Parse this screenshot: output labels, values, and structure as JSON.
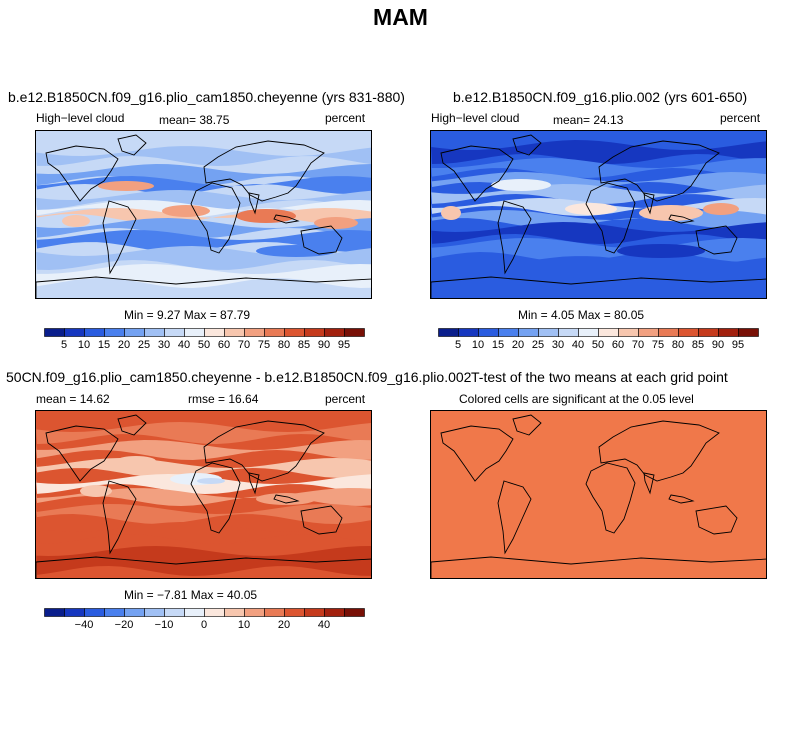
{
  "figure_title": "MAM",
  "panels": [
    {
      "title": "b.e12.B1850CN.f09_g16.plio_cam1850.cheyenne (yrs 831-880)",
      "left_label": "High−level cloud",
      "center_label": "mean=  38.75",
      "right_label": "percent",
      "stats": "Min =    9.27  Max =   87.79",
      "scale": "abs",
      "mean": 38.75,
      "min": 9.27,
      "max": 87.79
    },
    {
      "title": "b.e12.B1850CN.f09_g16.plio.002 (yrs 601-650)",
      "left_label": "High−level cloud",
      "center_label": "mean=  24.13",
      "right_label": "percent",
      "stats": "Min =    4.05  Max =   80.05",
      "scale": "abs",
      "mean": 24.13,
      "min": 4.05,
      "max": 80.05
    },
    {
      "title": "50CN.f09_g16.plio_cam1850.cheyenne - b.e12.B1850CN.f09_g16.plio.002",
      "left_label": "mean =  14.62",
      "center_label": "rmse =  16.64",
      "right_label": "percent",
      "stats": "Min =  −7.81  Max =   40.05",
      "scale": "diff",
      "mean": 14.62,
      "rmse": 16.64,
      "min": -7.81,
      "max": 40.05
    },
    {
      "title": "T-test of the two means at each grid point",
      "center_label": "Colored cells are significant at the 0.05 level",
      "scale": "sig"
    }
  ],
  "colorbars": {
    "abs": {
      "colors": [
        "#0a1e8c",
        "#1637c0",
        "#2a5ce0",
        "#4a80ee",
        "#74a2f2",
        "#a0c0f4",
        "#c6d9f6",
        "#e8f0fa",
        "#fbe7dd",
        "#f7c6ae",
        "#f2a080",
        "#e97a55",
        "#dc5530",
        "#c53a1c",
        "#a2200e",
        "#781006"
      ],
      "labels": [
        "5",
        "10",
        "15",
        "20",
        "25",
        "30",
        "40",
        "50",
        "60",
        "70",
        "75",
        "80",
        "85",
        "90",
        "95"
      ]
    },
    "diff": {
      "colors": [
        "#0a1e8c",
        "#1637c0",
        "#2a5ce0",
        "#4a80ee",
        "#74a2f2",
        "#a0c0f4",
        "#c6d9f6",
        "#e8f0fa",
        "#fbe7dd",
        "#f7c6ae",
        "#f2a080",
        "#e97a55",
        "#dc5530",
        "#c53a1c",
        "#a2200e",
        "#781006"
      ],
      "labels": [
        "−40",
        "−20",
        "−10",
        "0",
        "10",
        "20",
        "40"
      ]
    },
    "sig_color": "#f0784a"
  },
  "chart_data": [
    {
      "type": "heatmap",
      "title": "b.e12.B1850CN.f09_g16.plio_cam1850.cheyenne (yrs 831-880)",
      "variable": "High-level cloud",
      "units": "percent",
      "mean": 38.75,
      "min": 9.27,
      "max": 87.79,
      "levels": [
        5,
        10,
        15,
        20,
        25,
        30,
        40,
        50,
        60,
        70,
        75,
        80,
        85,
        90,
        95
      ]
    },
    {
      "type": "heatmap",
      "title": "b.e12.B1850CN.f09_g16.plio.002 (yrs 601-650)",
      "variable": "High-level cloud",
      "units": "percent",
      "mean": 24.13,
      "min": 4.05,
      "max": 80.05,
      "levels": [
        5,
        10,
        15,
        20,
        25,
        30,
        40,
        50,
        60,
        70,
        75,
        80,
        85,
        90,
        95
      ]
    },
    {
      "type": "heatmap",
      "title": "50CN.f09_g16.plio_cam1850.cheyenne - b.e12.B1850CN.f09_g16.plio.002",
      "units": "percent",
      "mean": 14.62,
      "rmse": 16.64,
      "min": -7.81,
      "max": 40.05,
      "levels": [
        -40,
        -20,
        -10,
        0,
        10,
        20,
        40
      ]
    },
    {
      "type": "heatmap",
      "title": "T-test of the two means at each grid point",
      "subtitle": "Colored cells are significant at the 0.05 level"
    }
  ]
}
